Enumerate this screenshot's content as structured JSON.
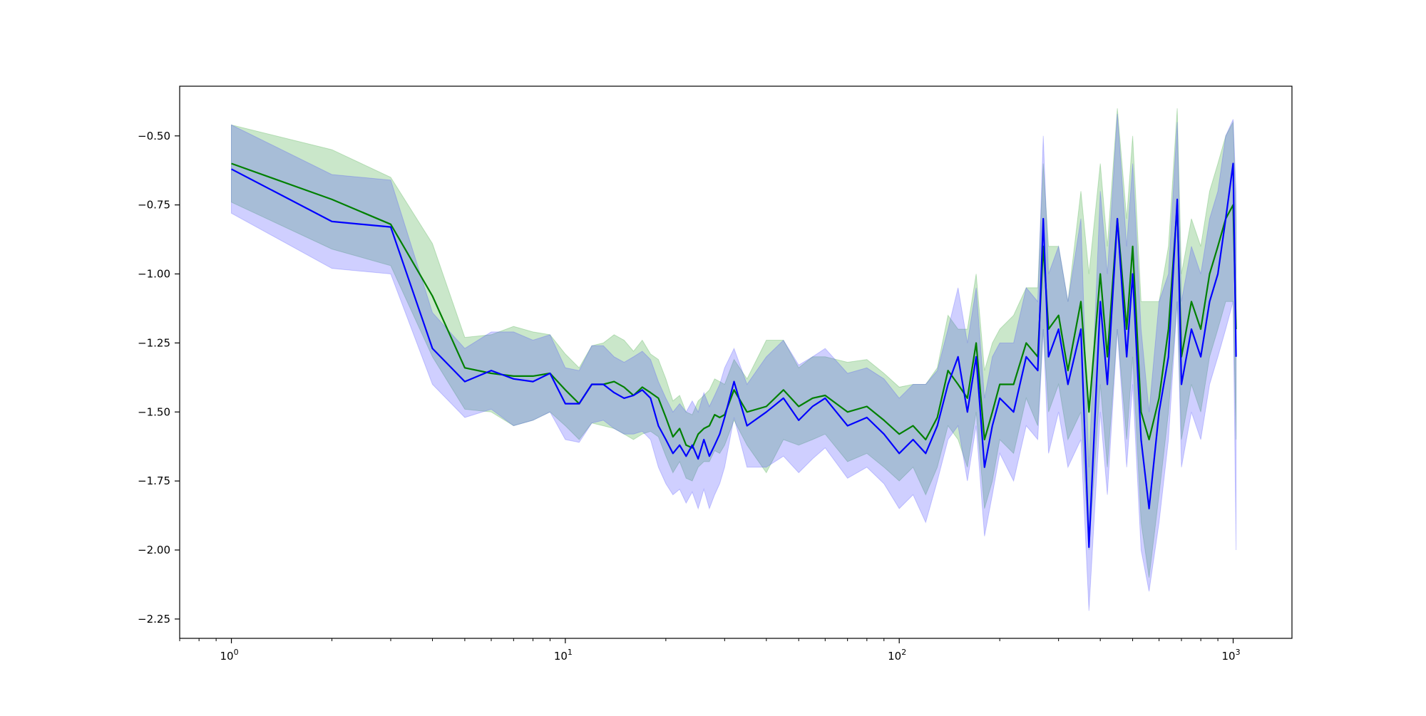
{
  "chart_data": {
    "type": "line",
    "title": "",
    "xlabel": "",
    "ylabel": "",
    "xscale": "log",
    "xlim": [
      0.7,
      1500
    ],
    "ylim": [
      -2.32,
      -0.32
    ],
    "grid": false,
    "x_ticks": [
      {
        "value": 1,
        "base": "10",
        "exp": "0"
      },
      {
        "value": 10,
        "base": "10",
        "exp": "1"
      },
      {
        "value": 100,
        "base": "10",
        "exp": "2"
      },
      {
        "value": 1000,
        "base": "10",
        "exp": "3"
      }
    ],
    "y_ticks": [
      {
        "value": -0.5,
        "label": "−0.50"
      },
      {
        "value": -0.75,
        "label": "−0.75"
      },
      {
        "value": -1.0,
        "label": "−1.00"
      },
      {
        "value": -1.25,
        "label": "−1.25"
      },
      {
        "value": -1.5,
        "label": "−1.50"
      },
      {
        "value": -1.75,
        "label": "−1.75"
      },
      {
        "value": -2.0,
        "label": "−2.00"
      },
      {
        "value": -2.25,
        "label": "−2.25"
      }
    ],
    "series": [
      {
        "color": "#008000",
        "band_color": "#2ca02c",
        "band_opacity": 0.25,
        "x": [
          1,
          2,
          3,
          4,
          5,
          6,
          7,
          8,
          9,
          10,
          11,
          12,
          13,
          14,
          15,
          16,
          17,
          18,
          19,
          20,
          21,
          22,
          23,
          24,
          25,
          26,
          27,
          28,
          29,
          30,
          32,
          35,
          40,
          45,
          50,
          55,
          60,
          70,
          80,
          90,
          100,
          110,
          120,
          130,
          140,
          150,
          160,
          170,
          180,
          190,
          200,
          220,
          240,
          260,
          270,
          280,
          300,
          320,
          350,
          370,
          400,
          420,
          450,
          480,
          500,
          530,
          560,
          600,
          640,
          680,
          700,
          750,
          800,
          850,
          900,
          950,
          1000,
          1020
        ],
        "y": [
          -0.6,
          -0.73,
          -0.82,
          -1.08,
          -1.34,
          -1.36,
          -1.37,
          -1.37,
          -1.36,
          -1.42,
          -1.47,
          -1.4,
          -1.4,
          -1.39,
          -1.41,
          -1.44,
          -1.41,
          -1.43,
          -1.45,
          -1.52,
          -1.59,
          -1.56,
          -1.62,
          -1.63,
          -1.58,
          -1.56,
          -1.55,
          -1.51,
          -1.52,
          -1.51,
          -1.42,
          -1.5,
          -1.48,
          -1.42,
          -1.48,
          -1.45,
          -1.44,
          -1.5,
          -1.48,
          -1.53,
          -1.58,
          -1.55,
          -1.6,
          -1.52,
          -1.35,
          -1.4,
          -1.45,
          -1.25,
          -1.6,
          -1.5,
          -1.4,
          -1.4,
          -1.25,
          -1.3,
          -0.9,
          -1.2,
          -1.15,
          -1.35,
          -1.1,
          -1.5,
          -1.0,
          -1.3,
          -0.8,
          -1.2,
          -0.9,
          -1.5,
          -1.6,
          -1.45,
          -1.2,
          -0.75,
          -1.3,
          -1.1,
          -1.2,
          -1.0,
          -0.9,
          -0.8,
          -0.75,
          -1.2
        ],
        "lower": [
          -0.74,
          -0.91,
          -0.97,
          -1.3,
          -1.49,
          -1.5,
          -1.55,
          -1.53,
          -1.5,
          -1.55,
          -1.6,
          -1.54,
          -1.55,
          -1.56,
          -1.58,
          -1.6,
          -1.58,
          -1.57,
          -1.59,
          -1.66,
          -1.72,
          -1.68,
          -1.74,
          -1.75,
          -1.7,
          -1.68,
          -1.68,
          -1.64,
          -1.65,
          -1.62,
          -1.53,
          -1.62,
          -1.72,
          -1.6,
          -1.62,
          -1.6,
          -1.58,
          -1.68,
          -1.65,
          -1.7,
          -1.75,
          -1.7,
          -1.8,
          -1.7,
          -1.55,
          -1.6,
          -1.7,
          -1.5,
          -1.85,
          -1.75,
          -1.6,
          -1.65,
          -1.45,
          -1.55,
          -1.2,
          -1.5,
          -1.4,
          -1.6,
          -1.5,
          -2.0,
          -1.4,
          -1.7,
          -1.2,
          -1.6,
          -1.3,
          -1.9,
          -2.1,
          -1.8,
          -1.5,
          -1.1,
          -1.6,
          -1.4,
          -1.5,
          -1.3,
          -1.2,
          -1.1,
          -1.1,
          -1.6
        ],
        "upper": [
          -0.46,
          -0.55,
          -0.65,
          -0.89,
          -1.23,
          -1.22,
          -1.19,
          -1.21,
          -1.22,
          -1.29,
          -1.34,
          -1.26,
          -1.25,
          -1.22,
          -1.24,
          -1.28,
          -1.24,
          -1.29,
          -1.31,
          -1.38,
          -1.46,
          -1.44,
          -1.5,
          -1.51,
          -1.46,
          -1.44,
          -1.42,
          -1.38,
          -1.39,
          -1.4,
          -1.31,
          -1.38,
          -1.24,
          -1.24,
          -1.34,
          -1.3,
          -1.3,
          -1.32,
          -1.31,
          -1.36,
          -1.41,
          -1.4,
          -1.4,
          -1.34,
          -1.15,
          -1.2,
          -1.2,
          -1.0,
          -1.35,
          -1.25,
          -1.2,
          -1.15,
          -1.05,
          -1.05,
          -0.6,
          -0.9,
          -0.9,
          -1.1,
          -0.7,
          -1.0,
          -0.6,
          -0.9,
          -0.4,
          -0.8,
          -0.5,
          -1.1,
          -1.1,
          -1.1,
          -0.9,
          -0.4,
          -1.0,
          -0.8,
          -0.9,
          -0.7,
          -0.6,
          -0.5,
          -0.45,
          -0.8
        ]
      },
      {
        "color": "#0000ff",
        "band_color": "#4040ff",
        "band_opacity": 0.25,
        "x": [
          1,
          2,
          3,
          4,
          5,
          6,
          7,
          8,
          9,
          10,
          11,
          12,
          13,
          14,
          15,
          16,
          17,
          18,
          19,
          20,
          21,
          22,
          23,
          24,
          25,
          26,
          27,
          28,
          29,
          30,
          32,
          35,
          40,
          45,
          50,
          55,
          60,
          70,
          80,
          90,
          100,
          110,
          120,
          130,
          140,
          150,
          160,
          170,
          180,
          190,
          200,
          220,
          240,
          260,
          270,
          280,
          300,
          320,
          350,
          370,
          400,
          420,
          450,
          480,
          500,
          530,
          560,
          600,
          640,
          680,
          700,
          750,
          800,
          850,
          900,
          950,
          1000,
          1020
        ],
        "y": [
          -0.62,
          -0.81,
          -0.83,
          -1.27,
          -1.39,
          -1.35,
          -1.38,
          -1.39,
          -1.36,
          -1.47,
          -1.47,
          -1.4,
          -1.4,
          -1.43,
          -1.45,
          -1.44,
          -1.42,
          -1.45,
          -1.55,
          -1.6,
          -1.65,
          -1.62,
          -1.66,
          -1.62,
          -1.67,
          -1.6,
          -1.66,
          -1.62,
          -1.58,
          -1.52,
          -1.39,
          -1.55,
          -1.5,
          -1.45,
          -1.53,
          -1.48,
          -1.45,
          -1.55,
          -1.52,
          -1.58,
          -1.65,
          -1.6,
          -1.65,
          -1.55,
          -1.4,
          -1.3,
          -1.5,
          -1.3,
          -1.7,
          -1.55,
          -1.45,
          -1.5,
          -1.3,
          -1.35,
          -0.8,
          -1.3,
          -1.2,
          -1.4,
          -1.2,
          -1.99,
          -1.1,
          -1.4,
          -0.8,
          -1.3,
          -1.0,
          -1.6,
          -1.85,
          -1.5,
          -1.3,
          -0.73,
          -1.4,
          -1.2,
          -1.3,
          -1.1,
          -1.0,
          -0.8,
          -0.6,
          -1.3
        ],
        "lower": [
          -0.78,
          -0.98,
          -1.0,
          -1.4,
          -1.52,
          -1.49,
          -1.55,
          -1.53,
          -1.5,
          -1.6,
          -1.61,
          -1.54,
          -1.53,
          -1.56,
          -1.58,
          -1.58,
          -1.57,
          -1.6,
          -1.7,
          -1.76,
          -1.8,
          -1.78,
          -1.83,
          -1.79,
          -1.85,
          -1.78,
          -1.85,
          -1.8,
          -1.76,
          -1.7,
          -1.52,
          -1.7,
          -1.7,
          -1.66,
          -1.72,
          -1.67,
          -1.63,
          -1.74,
          -1.7,
          -1.76,
          -1.85,
          -1.8,
          -1.9,
          -1.75,
          -1.6,
          -1.55,
          -1.75,
          -1.55,
          -1.95,
          -1.8,
          -1.65,
          -1.75,
          -1.55,
          -1.6,
          -1.2,
          -1.65,
          -1.5,
          -1.7,
          -1.6,
          -2.22,
          -1.5,
          -1.8,
          -1.2,
          -1.7,
          -1.4,
          -2.0,
          -2.15,
          -1.9,
          -1.6,
          -1.1,
          -1.7,
          -1.5,
          -1.6,
          -1.4,
          -1.3,
          -1.2,
          -1.1,
          -2.0
        ],
        "upper": [
          -0.46,
          -0.64,
          -0.66,
          -1.14,
          -1.27,
          -1.21,
          -1.21,
          -1.24,
          -1.22,
          -1.34,
          -1.35,
          -1.26,
          -1.26,
          -1.3,
          -1.32,
          -1.3,
          -1.28,
          -1.31,
          -1.39,
          -1.45,
          -1.5,
          -1.47,
          -1.5,
          -1.46,
          -1.5,
          -1.43,
          -1.48,
          -1.44,
          -1.4,
          -1.34,
          -1.27,
          -1.4,
          -1.3,
          -1.24,
          -1.33,
          -1.3,
          -1.27,
          -1.36,
          -1.34,
          -1.38,
          -1.45,
          -1.4,
          -1.4,
          -1.35,
          -1.2,
          -1.05,
          -1.25,
          -1.05,
          -1.45,
          -1.3,
          -1.25,
          -1.25,
          -1.05,
          -1.1,
          -0.5,
          -1.0,
          -0.9,
          -1.1,
          -0.8,
          -1.7,
          -0.7,
          -1.0,
          -0.42,
          -0.9,
          -0.6,
          -1.2,
          -1.5,
          -1.1,
          -1.0,
          -0.45,
          -1.1,
          -0.9,
          -1.0,
          -0.8,
          -0.7,
          -0.5,
          -0.44,
          -0.7
        ]
      }
    ]
  }
}
